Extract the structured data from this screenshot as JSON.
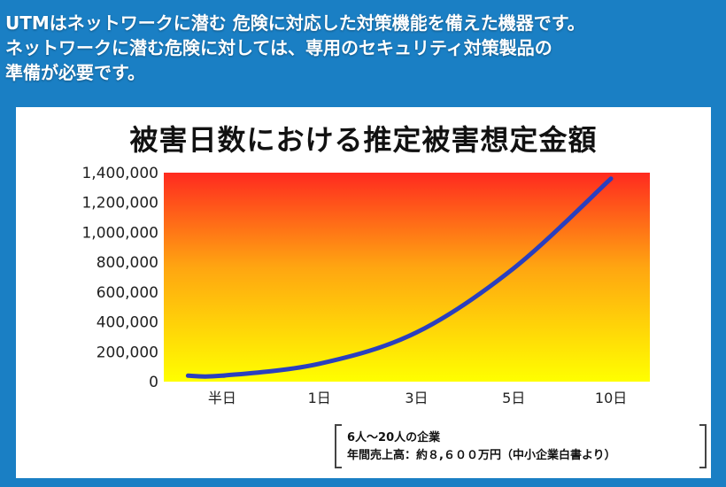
{
  "headline": {
    "line1": "UTMはネットワークに潜む 危険に対応した対策機能を備えた機器です。",
    "line2": "ネットワークに潜む危険に対しては、専用のセキュリティ対策製品の",
    "line3": "準備が必要です。"
  },
  "chart_data": {
    "type": "line",
    "title": "被害日数における推定被害想定金額",
    "categories": [
      "半日",
      "1日",
      "3日",
      "5日",
      "10日"
    ],
    "ylim": [
      0,
      1400000
    ],
    "yticks": [
      "0",
      "200,000",
      "400,000",
      "600,000",
      "800,000",
      "1,000,000",
      "1,200,000",
      "1,400,000"
    ],
    "series": [
      {
        "values": [
          40000,
          120000,
          330000,
          760000,
          1360000
        ],
        "color": "#2a3fbf"
      }
    ],
    "grid": false,
    "background_gradient": [
      "#ff2a1f",
      "#ffa511",
      "#ffff00"
    ]
  },
  "note": {
    "line1": "6人〜20人の企業",
    "line2": "年間売上高：約８,６００万円（中小企業白書より）"
  }
}
